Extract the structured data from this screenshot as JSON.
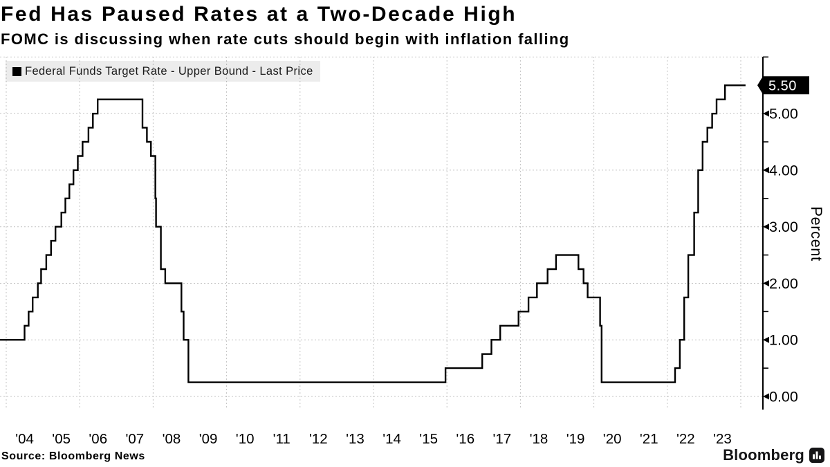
{
  "header": {
    "title": "Fed Has Paused Rates at a Two-Decade High",
    "subtitle": "FOMC is discussing when rate cuts should begin with inflation falling"
  },
  "legend": {
    "label": "Federal Funds Target Rate - Upper Bound - Last Price"
  },
  "footer": {
    "source": "Source: Bloomberg News",
    "brand": "Bloomberg"
  },
  "colors": {
    "line": "#000000",
    "grid": "#c3c3c3",
    "legend_bg": "#ececec",
    "flag_bg": "#000000",
    "flag_text": "#ffffff",
    "background": "#ffffff"
  },
  "chart_data": {
    "type": "line",
    "subtype": "step",
    "title": "Fed Has Paused Rates at a Two-Decade High",
    "ylabel": "Percent",
    "xlabel": "",
    "ylim": [
      -0.23,
      6.0
    ],
    "xlim_years": [
      2003.83,
      2024.6
    ],
    "grid": {
      "h_values": [
        0,
        1,
        2,
        3,
        4,
        5,
        6
      ],
      "v_years": [
        2004,
        2006,
        2008,
        2010,
        2012,
        2014,
        2016,
        2018,
        2020,
        2022,
        2024
      ]
    },
    "x_ticks": {
      "first_year": 2004,
      "labels": [
        "'04",
        "'05",
        "'06",
        "'07",
        "'08",
        "'09",
        "'10",
        "'11",
        "'12",
        "'13",
        "'14",
        "'15",
        "'16",
        "'17",
        "'18",
        "'19",
        "'20",
        "'21",
        "'22",
        "'23"
      ]
    },
    "y_ticks": {
      "major": [
        {
          "v": 0,
          "label": "0.00"
        },
        {
          "v": 1,
          "label": "1.00"
        },
        {
          "v": 2,
          "label": "2.00"
        },
        {
          "v": 3,
          "label": "3.00"
        },
        {
          "v": 4,
          "label": "4.00"
        },
        {
          "v": 5,
          "label": "5.00"
        }
      ],
      "minor": [
        0.5,
        1.5,
        2.5,
        3.5,
        4.5,
        6.0
      ]
    },
    "last_price": {
      "value": 5.5,
      "label": "5.50"
    },
    "series": [
      {
        "name": "Federal Funds Target Rate - Upper Bound",
        "color": "#000000",
        "end_year": 2024.13,
        "steps": [
          [
            2003.83,
            1.0
          ],
          [
            2004.5,
            1.25
          ],
          [
            2004.61,
            1.5
          ],
          [
            2004.72,
            1.75
          ],
          [
            2004.86,
            2.0
          ],
          [
            2004.95,
            2.25
          ],
          [
            2005.09,
            2.5
          ],
          [
            2005.22,
            2.75
          ],
          [
            2005.34,
            3.0
          ],
          [
            2005.5,
            3.25
          ],
          [
            2005.61,
            3.5
          ],
          [
            2005.72,
            3.75
          ],
          [
            2005.83,
            4.0
          ],
          [
            2005.95,
            4.25
          ],
          [
            2006.08,
            4.5
          ],
          [
            2006.24,
            4.75
          ],
          [
            2006.36,
            5.0
          ],
          [
            2006.49,
            5.25
          ],
          [
            2007.71,
            4.75
          ],
          [
            2007.83,
            4.5
          ],
          [
            2007.94,
            4.25
          ],
          [
            2008.06,
            3.5
          ],
          [
            2008.08,
            3.0
          ],
          [
            2008.21,
            2.25
          ],
          [
            2008.33,
            2.0
          ],
          [
            2008.77,
            1.5
          ],
          [
            2008.83,
            1.0
          ],
          [
            2008.96,
            0.25
          ],
          [
            2015.96,
            0.5
          ],
          [
            2016.96,
            0.75
          ],
          [
            2017.21,
            1.0
          ],
          [
            2017.45,
            1.25
          ],
          [
            2017.95,
            1.5
          ],
          [
            2018.22,
            1.75
          ],
          [
            2018.45,
            2.0
          ],
          [
            2018.74,
            2.25
          ],
          [
            2018.97,
            2.5
          ],
          [
            2019.58,
            2.25
          ],
          [
            2019.72,
            2.0
          ],
          [
            2019.83,
            1.75
          ],
          [
            2020.17,
            1.25
          ],
          [
            2020.21,
            0.25
          ],
          [
            2022.21,
            0.5
          ],
          [
            2022.34,
            1.0
          ],
          [
            2022.46,
            1.75
          ],
          [
            2022.57,
            2.5
          ],
          [
            2022.73,
            3.25
          ],
          [
            2022.84,
            4.0
          ],
          [
            2022.96,
            4.5
          ],
          [
            2023.09,
            4.75
          ],
          [
            2023.22,
            5.0
          ],
          [
            2023.34,
            5.25
          ],
          [
            2023.57,
            5.5
          ]
        ]
      }
    ]
  }
}
